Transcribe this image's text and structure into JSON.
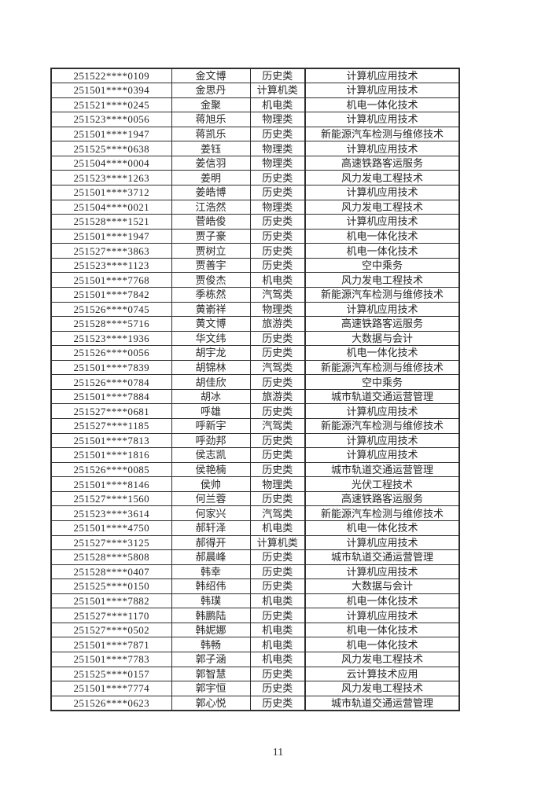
{
  "page_number": "11",
  "colors": {
    "background": "#ffffff",
    "text": "#262626",
    "border": "#2e2e2e"
  },
  "table": {
    "rows": [
      {
        "id": "251522****0109",
        "name": "金文博",
        "category": "历史类",
        "major": "计算机应用技术"
      },
      {
        "id": "251501****0394",
        "name": "金思丹",
        "category": "计算机类",
        "major": "计算机应用技术"
      },
      {
        "id": "251521****0245",
        "name": "金聚",
        "category": "机电类",
        "major": "机电一体化技术"
      },
      {
        "id": "251523****0056",
        "name": "蒋旭乐",
        "category": "物理类",
        "major": "计算机应用技术"
      },
      {
        "id": "251501****1947",
        "name": "蒋凯乐",
        "category": "历史类",
        "major": "新能源汽车检测与维修技术"
      },
      {
        "id": "251525****0638",
        "name": "姜钰",
        "category": "物理类",
        "major": "计算机应用技术"
      },
      {
        "id": "251504****0004",
        "name": "姜信羽",
        "category": "物理类",
        "major": "高速铁路客运服务"
      },
      {
        "id": "251523****1263",
        "name": "姜明",
        "category": "历史类",
        "major": "风力发电工程技术"
      },
      {
        "id": "251501****3712",
        "name": "姜皓博",
        "category": "历史类",
        "major": "计算机应用技术"
      },
      {
        "id": "251504****0021",
        "name": "江浩然",
        "category": "物理类",
        "major": "风力发电工程技术"
      },
      {
        "id": "251528****1521",
        "name": "菅皓俊",
        "category": "历史类",
        "major": "计算机应用技术"
      },
      {
        "id": "251501****1947",
        "name": "贾子豪",
        "category": "历史类",
        "major": "机电一体化技术"
      },
      {
        "id": "251527****3863",
        "name": "贾树立",
        "category": "历史类",
        "major": "机电一体化技术"
      },
      {
        "id": "251523****1123",
        "name": "贾善宇",
        "category": "历史类",
        "major": "空中乘务"
      },
      {
        "id": "251501****7768",
        "name": "贾俊杰",
        "category": "机电类",
        "major": "风力发电工程技术"
      },
      {
        "id": "251501****7842",
        "name": "季栋然",
        "category": "汽驾类",
        "major": "新能源汽车检测与维修技术"
      },
      {
        "id": "251526****0745",
        "name": "黄嵛祥",
        "category": "物理类",
        "major": "计算机应用技术"
      },
      {
        "id": "251528****5716",
        "name": "黄文博",
        "category": "旅游类",
        "major": "高速铁路客运服务"
      },
      {
        "id": "251523****1936",
        "name": "华文纬",
        "category": "历史类",
        "major": "大数据与会计"
      },
      {
        "id": "251526****0056",
        "name": "胡宇龙",
        "category": "历史类",
        "major": "机电一体化技术"
      },
      {
        "id": "251501****7839",
        "name": "胡锦林",
        "category": "汽驾类",
        "major": "新能源汽车检测与维修技术"
      },
      {
        "id": "251526****0784",
        "name": "胡佳欣",
        "category": "历史类",
        "major": "空中乘务"
      },
      {
        "id": "251501****7884",
        "name": "胡冰",
        "category": "旅游类",
        "major": "城市轨道交通运营管理"
      },
      {
        "id": "251527****0681",
        "name": "呼雄",
        "category": "历史类",
        "major": "计算机应用技术"
      },
      {
        "id": "251527****1185",
        "name": "呼新宇",
        "category": "汽驾类",
        "major": "新能源汽车检测与维修技术"
      },
      {
        "id": "251501****7813",
        "name": "呼劲邦",
        "category": "历史类",
        "major": "计算机应用技术"
      },
      {
        "id": "251501****1816",
        "name": "侯志凯",
        "category": "历史类",
        "major": "计算机应用技术"
      },
      {
        "id": "251526****0085",
        "name": "侯艳楠",
        "category": "历史类",
        "major": "城市轨道交通运营管理"
      },
      {
        "id": "251501****8146",
        "name": "侯帅",
        "category": "物理类",
        "major": "光伏工程技术"
      },
      {
        "id": "251527****1560",
        "name": "何兰蓉",
        "category": "历史类",
        "major": "高速铁路客运服务"
      },
      {
        "id": "251523****3614",
        "name": "何家兴",
        "category": "汽驾类",
        "major": "新能源汽车检测与维修技术"
      },
      {
        "id": "251501****4750",
        "name": "郝轩泽",
        "category": "机电类",
        "major": "机电一体化技术"
      },
      {
        "id": "251527****3125",
        "name": "郝得开",
        "category": "计算机类",
        "major": "计算机应用技术"
      },
      {
        "id": "251528****5808",
        "name": "郝晨峰",
        "category": "历史类",
        "major": "城市轨道交通运营管理"
      },
      {
        "id": "251528****0407",
        "name": "韩幸",
        "category": "历史类",
        "major": "计算机应用技术"
      },
      {
        "id": "251525****0150",
        "name": "韩绍伟",
        "category": "历史类",
        "major": "大数据与会计"
      },
      {
        "id": "251501****7882",
        "name": "韩璞",
        "category": "机电类",
        "major": "机电一体化技术"
      },
      {
        "id": "251527****1170",
        "name": "韩鹏陆",
        "category": "历史类",
        "major": "计算机应用技术"
      },
      {
        "id": "251527****0502",
        "name": "韩妮娜",
        "category": "机电类",
        "major": "机电一体化技术"
      },
      {
        "id": "251501****7871",
        "name": "韩畅",
        "category": "机电类",
        "major": "机电一体化技术"
      },
      {
        "id": "251501****7783",
        "name": "郭子涵",
        "category": "机电类",
        "major": "风力发电工程技术"
      },
      {
        "id": "251525****0157",
        "name": "郭智慧",
        "category": "历史类",
        "major": "云计算技术应用"
      },
      {
        "id": "251501****7774",
        "name": "郭宇恒",
        "category": "历史类",
        "major": "风力发电工程技术"
      },
      {
        "id": "251526****0623",
        "name": "郭心悦",
        "category": "历史类",
        "major": "城市轨道交通运营管理"
      }
    ]
  }
}
